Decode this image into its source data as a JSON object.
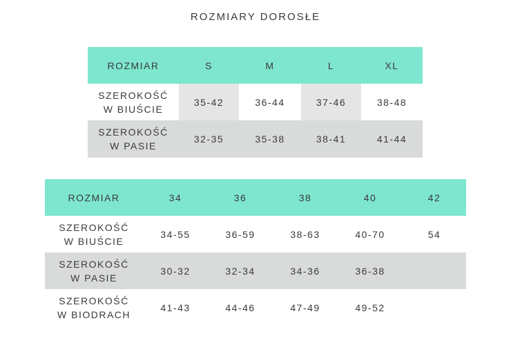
{
  "title": "ROZMIARY DOROSŁE",
  "table1": {
    "header": [
      "ROZMIAR",
      "S",
      "M",
      "L",
      "XL"
    ],
    "rows": [
      {
        "label": [
          "SZEROKOŚĆ",
          "W BIUŚCIE"
        ],
        "values": [
          "35-42",
          "36-44",
          "37-46",
          "38-48"
        ]
      },
      {
        "label": [
          "SZEROKOŚĆ",
          "W PASIE"
        ],
        "values": [
          "32-35",
          "35-38",
          "38-41",
          "41-44"
        ]
      }
    ]
  },
  "table2": {
    "header": [
      "ROZMIAR",
      "34",
      "36",
      "38",
      "40",
      "42"
    ],
    "rows": [
      {
        "label": [
          "SZEROKOŚĆ",
          "W BIUŚCIE"
        ],
        "values": [
          "34-55",
          "36-59",
          "38-63",
          "40-70",
          "54"
        ]
      },
      {
        "label": [
          "SZEROKOŚĆ",
          "W PASIE"
        ],
        "values": [
          "30-32",
          "32-34",
          "34-36",
          "36-38",
          ""
        ]
      },
      {
        "label": [
          "SZEROKOŚĆ",
          "W BIODRACH"
        ],
        "values": [
          "41-43",
          "44-46",
          "47-49",
          "49-52",
          ""
        ]
      }
    ]
  },
  "colors": {
    "header_teal": "#7ee6cf",
    "row_grey": "#d9dbdb",
    "cell_light_grey": "#e5e5e5",
    "text": "#3a3a3a"
  }
}
